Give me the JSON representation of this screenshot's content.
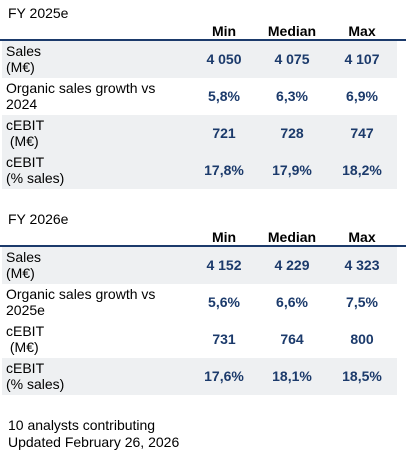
{
  "sections": [
    {
      "title": "FY 2025e",
      "headers": [
        "Min",
        "Median",
        "Max"
      ],
      "rows": [
        {
          "label": "Sales\n(M€)",
          "values": [
            "4 050",
            "4 075",
            "4 107"
          ]
        },
        {
          "label": "Organic sales growth vs\n2024",
          "values": [
            "5,8%",
            "6,3%",
            "6,9%"
          ]
        },
        {
          "label": "cEBIT\n (M€)",
          "values": [
            "721",
            "728",
            "747"
          ]
        },
        {
          "label": "cEBIT\n(% sales)",
          "values": [
            "17,8%",
            "17,9%",
            "18,2%"
          ]
        }
      ]
    },
    {
      "title": "FY 2026e",
      "headers": [
        "Min",
        "Median",
        "Max"
      ],
      "rows": [
        {
          "label": "Sales\n(M€)",
          "values": [
            "4 152",
            "4 229",
            "4 323"
          ]
        },
        {
          "label": "Organic sales growth vs\n2025e",
          "values": [
            "5,6%",
            "6,6%",
            "7,5%"
          ]
        },
        {
          "label": "cEBIT\n (M€)",
          "values": [
            "731",
            "764",
            "800"
          ]
        },
        {
          "label": "cEBIT\n(% sales)",
          "values": [
            "17,6%",
            "18,1%",
            "18,5%"
          ]
        }
      ]
    }
  ],
  "footer": {
    "analysts": "10 analysts contributing",
    "updated": "Updated February 26, 2026"
  },
  "colors": {
    "accent": "#1b3a6b",
    "row_shade": "#eef0f2"
  }
}
